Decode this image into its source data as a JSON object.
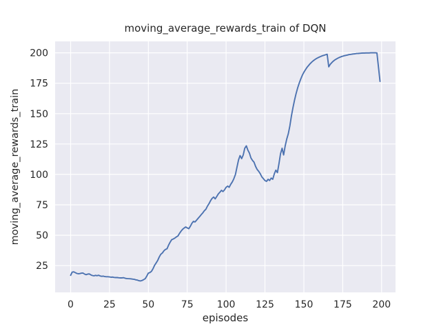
{
  "chart_data": {
    "type": "line",
    "title": "moving_average_rewards_train of DQN",
    "xlabel": "episodes",
    "ylabel": "moving_average_rewards_train",
    "x": "episode index 0-199 (one point per episode)",
    "x_ticks": [
      0,
      25,
      50,
      75,
      100,
      125,
      150,
      175,
      200
    ],
    "y_ticks": [
      25,
      50,
      75,
      100,
      125,
      150,
      175,
      200
    ],
    "xlim": [
      -9.95,
      208.95
    ],
    "ylim": [
      3.0,
      209.4
    ],
    "grid": true,
    "legend": "none",
    "style": "seaborn-darkgrid",
    "colors": {
      "figure_background": "#ffffff",
      "axes_background": "#eaeaf2",
      "grid": "#ffffff",
      "text": "#262626",
      "line": "#4c72b0"
    },
    "series": [
      {
        "name": "moving_average_rewards_train",
        "color": "#4c72b0",
        "values": [
          17.0,
          19.6,
          19.9,
          19.3,
          18.6,
          18.3,
          18.5,
          18.8,
          18.9,
          18.0,
          17.6,
          18.0,
          18.2,
          17.4,
          16.9,
          16.6,
          17.0,
          16.7,
          17.1,
          16.5,
          16.2,
          16.4,
          16.0,
          15.9,
          15.9,
          15.7,
          15.5,
          15.6,
          15.3,
          15.2,
          15.2,
          15.0,
          14.9,
          14.9,
          15.1,
          14.7,
          14.4,
          14.3,
          14.2,
          14.1,
          13.9,
          13.7,
          13.3,
          13.1,
          12.6,
          12.4,
          12.8,
          13.5,
          14.3,
          16.4,
          18.9,
          19.3,
          20.3,
          22.5,
          25.2,
          27.2,
          29.2,
          32.1,
          34.3,
          35.4,
          37.2,
          38.3,
          38.9,
          41.8,
          44.3,
          46.3,
          46.9,
          47.6,
          48.6,
          49.4,
          51.4,
          53.3,
          54.8,
          55.9,
          56.8,
          56.0,
          55.4,
          57.3,
          59.8,
          61.4,
          60.9,
          62.4,
          63.9,
          65.4,
          66.9,
          68.4,
          70.1,
          71.4,
          73.9,
          75.9,
          78.4,
          80.3,
          81.4,
          79.9,
          81.9,
          83.9,
          85.4,
          86.9,
          85.9,
          87.4,
          89.4,
          90.4,
          89.4,
          91.9,
          93.9,
          96.5,
          100.0,
          106.0,
          112.0,
          115.5,
          113.0,
          116.0,
          121.5,
          123.5,
          120.0,
          117.5,
          113.5,
          111.5,
          110.0,
          106.5,
          104.0,
          102.5,
          100.5,
          98.0,
          96.5,
          95.0,
          94.3,
          96.0,
          95.0,
          97.0,
          96.0,
          100.5,
          103.5,
          101.5,
          109.0,
          117.0,
          121.5,
          116.0,
          123.5,
          129.0,
          133.5,
          140.0,
          148.0,
          155.0,
          161.0,
          166.5,
          171.0,
          175.0,
          178.5,
          181.5,
          184.0,
          186.0,
          188.0,
          189.5,
          191.0,
          192.3,
          193.4,
          194.4,
          195.2,
          195.9,
          196.5,
          197.1,
          197.6,
          198.0,
          198.4,
          198.8,
          188.5,
          190.5,
          192.0,
          193.2,
          194.2,
          195.0,
          195.7,
          196.3,
          196.8,
          197.2,
          197.6,
          197.9,
          198.2,
          198.5,
          198.7,
          198.9,
          199.1,
          199.2,
          199.4,
          199.5,
          199.6,
          199.7,
          199.8,
          199.8,
          199.9,
          199.9,
          199.9,
          200.0,
          200.0,
          200.0,
          200.0,
          199.9,
          188.0,
          176.5
        ]
      }
    ]
  }
}
